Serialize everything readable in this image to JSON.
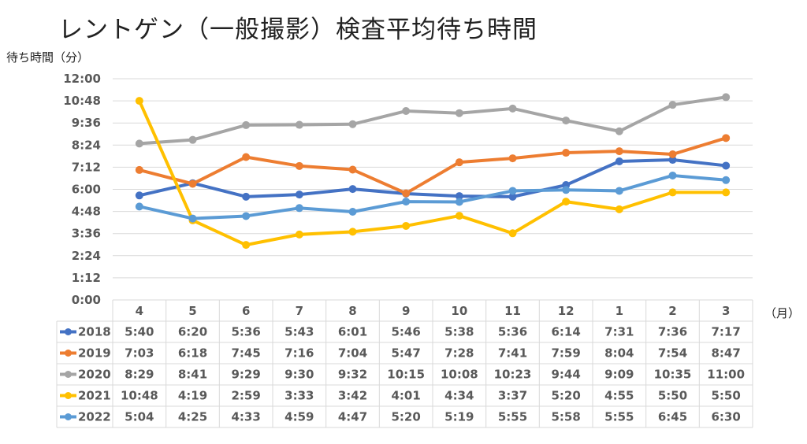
{
  "chart_data": {
    "type": "line",
    "title": "レントゲン（一般撮影）検査平均待ち時間",
    "ylabel": "待ち時間（分）",
    "xunit": "（月）",
    "categories": [
      "4",
      "5",
      "6",
      "7",
      "8",
      "9",
      "10",
      "11",
      "12",
      "1",
      "2",
      "3"
    ],
    "y_ticks": [
      "12:00",
      "10:48",
      "9:36",
      "8:24",
      "7:12",
      "6:00",
      "4:48",
      "3:36",
      "2:24",
      "1:12",
      "0:00"
    ],
    "ylim": [
      "0:00",
      "12:00"
    ],
    "grid": true,
    "legend": "data-table",
    "series": [
      {
        "name": "2018",
        "color": "#4472C4",
        "values": [
          "5:40",
          "6:20",
          "5:36",
          "5:43",
          "6:01",
          "5:46",
          "5:38",
          "5:36",
          "6:14",
          "7:31",
          "7:36",
          "7:17"
        ]
      },
      {
        "name": "2019",
        "color": "#ED7D31",
        "values": [
          "7:03",
          "6:18",
          "7:45",
          "7:16",
          "7:04",
          "5:47",
          "7:28",
          "7:41",
          "7:59",
          "8:04",
          "7:54",
          "8:47"
        ]
      },
      {
        "name": "2020",
        "color": "#A5A5A5",
        "values": [
          "8:29",
          "8:41",
          "9:29",
          "9:30",
          "9:32",
          "10:15",
          "10:08",
          "10:23",
          "9:44",
          "9:09",
          "10:35",
          "11:00"
        ]
      },
      {
        "name": "2021",
        "color": "#FFC000",
        "values": [
          "10:48",
          "4:19",
          "2:59",
          "3:33",
          "3:42",
          "4:01",
          "4:34",
          "3:37",
          "5:20",
          "4:55",
          "5:50",
          "5:50"
        ]
      },
      {
        "name": "2022",
        "color": "#5B9BD5",
        "values": [
          "5:04",
          "4:25",
          "4:33",
          "4:59",
          "4:47",
          "5:20",
          "5:19",
          "5:55",
          "5:58",
          "5:55",
          "6:45",
          "6:30"
        ]
      }
    ]
  }
}
